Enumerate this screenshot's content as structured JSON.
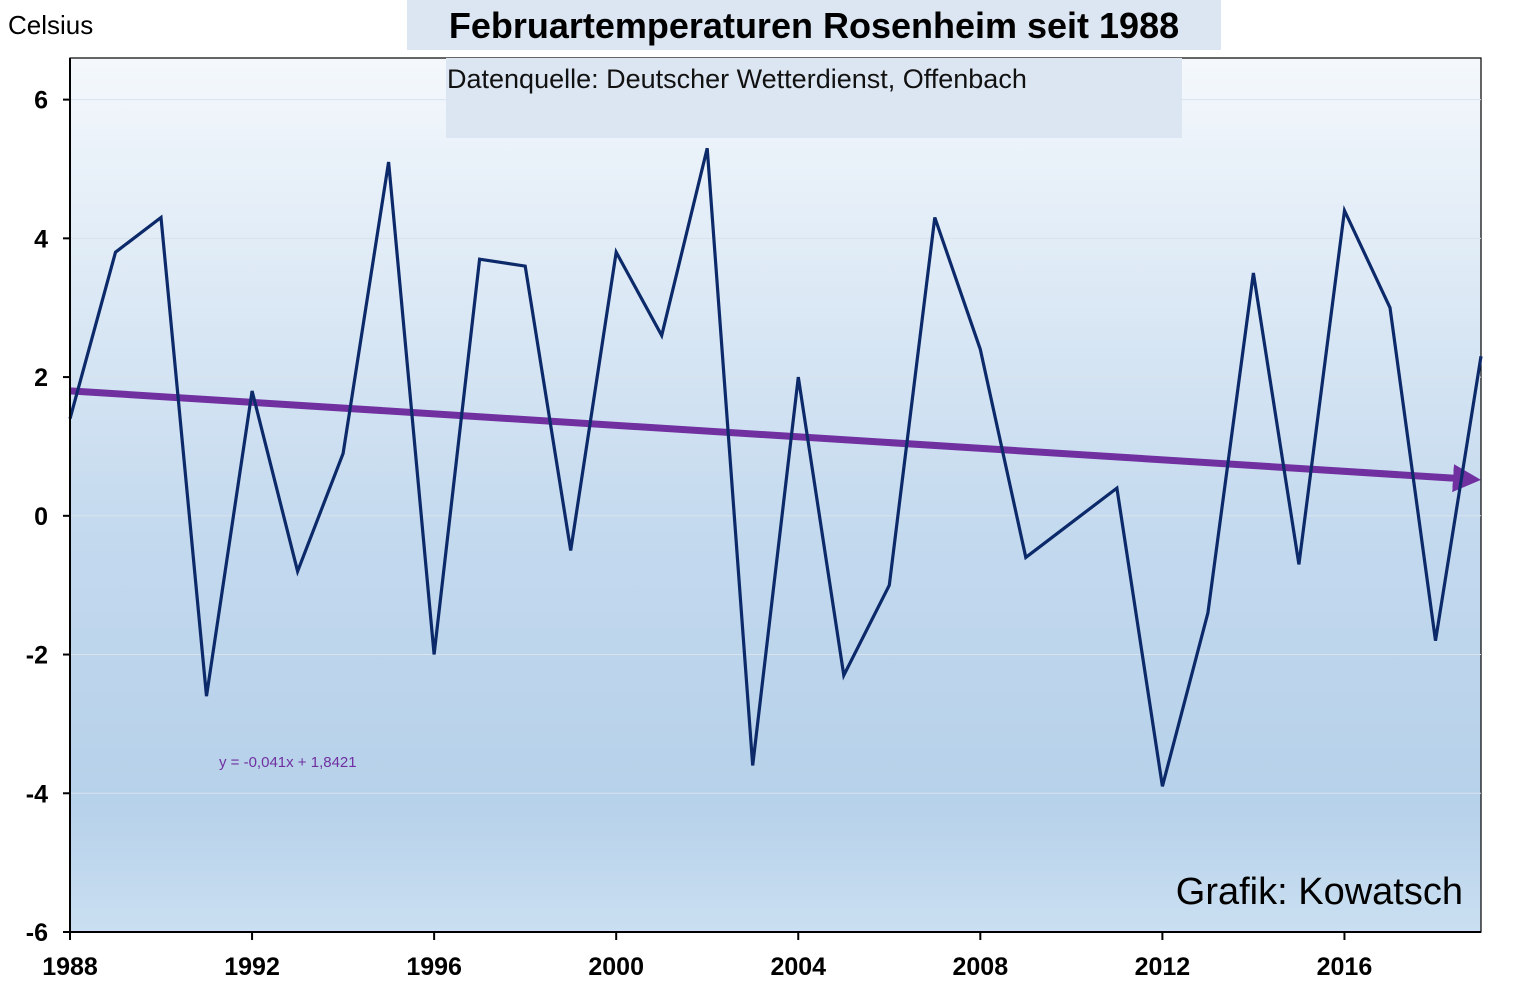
{
  "chart_data": {
    "type": "line",
    "title": "Februartemperaturen Rosenheim seit 1988",
    "subtitle": "Datenquelle: Deutscher Wetterdienst, Offenbach",
    "ylabel": "Celsius",
    "credit": "Grafik: Kowatsch",
    "ylim": [
      -6,
      6.6
    ],
    "xlim": [
      1988,
      2019
    ],
    "yticks": [
      6,
      4,
      2,
      0,
      -2,
      -4,
      -6
    ],
    "xticks": [
      1988,
      1992,
      1996,
      2000,
      2004,
      2008,
      2012,
      2016
    ],
    "grid": true,
    "x": [
      1988,
      1989,
      1990,
      1991,
      1992,
      1993,
      1994,
      1995,
      1996,
      1997,
      1998,
      1999,
      2000,
      2001,
      2002,
      2003,
      2004,
      2005,
      2006,
      2007,
      2008,
      2009,
      2010,
      2011,
      2012,
      2013,
      2014,
      2015,
      2016,
      2017,
      2018,
      2019
    ],
    "series": [
      {
        "color": "#0c2a6a",
        "values": [
          1.4,
          3.8,
          4.3,
          -2.6,
          1.8,
          -0.8,
          0.9,
          5.1,
          -2.0,
          3.7,
          3.6,
          -0.5,
          3.8,
          2.6,
          5.3,
          -3.6,
          2.0,
          -2.3,
          -1.0,
          4.3,
          2.4,
          -0.6,
          -0.1,
          0.4,
          -3.9,
          -1.4,
          3.5,
          -0.7,
          4.4,
          3.0,
          -1.8,
          2.3
        ]
      }
    ],
    "trendline": {
      "equation": "y = -0,041x + 1,8421",
      "slope": -0.041,
      "intercept": 1.8421,
      "color": "#7030a0"
    }
  }
}
